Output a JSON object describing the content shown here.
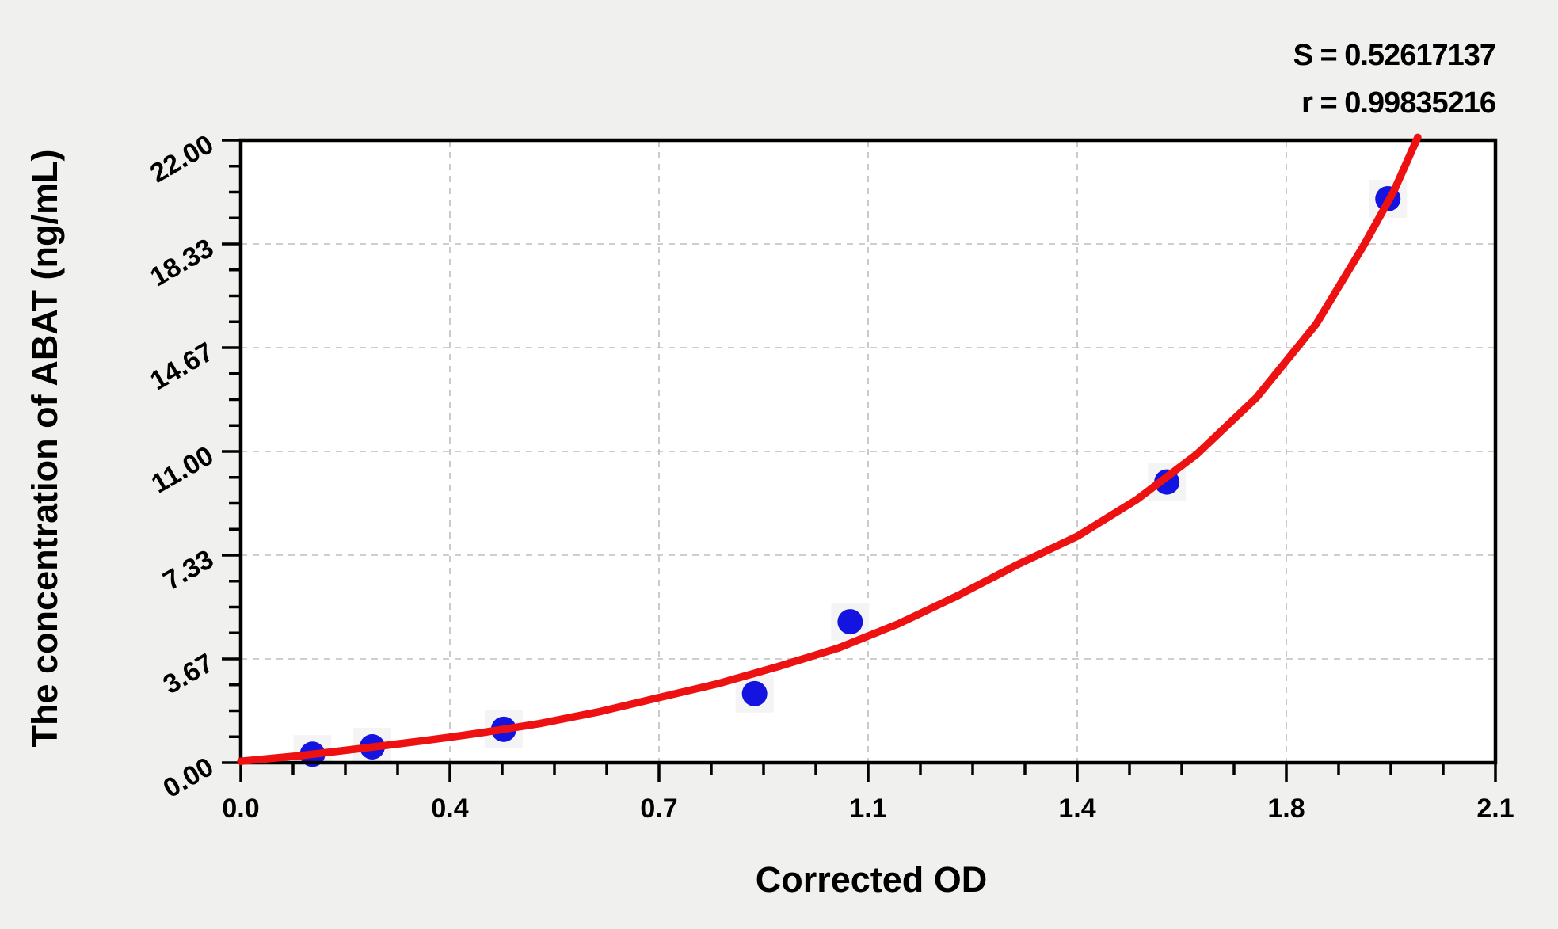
{
  "stats": {
    "s_line": "S = 0.52617137",
    "r_line": "r = 0.99835216"
  },
  "colors": {
    "background": "#f0f0ee",
    "plot_background": "#ffffff",
    "axis": "#000000",
    "grid": "#bdbdbd",
    "curve": "#ee1111",
    "point": "#1414e0",
    "point_halo": "#f4f4f4"
  },
  "chart_data": {
    "type": "scatter",
    "title": "",
    "xlabel": "Corrected OD",
    "ylabel": "The concentration of ABAT (ng/mL)",
    "xlim": [
      0,
      2.1
    ],
    "ylim": [
      0,
      22
    ],
    "grid": {
      "show": true,
      "style": "dashed",
      "at": "major-ticks"
    },
    "legend_position": "none",
    "x_major_ticks": [
      {
        "value": 0.0,
        "label": "0.0"
      },
      {
        "value": 0.35,
        "label": "0.4"
      },
      {
        "value": 0.7,
        "label": "0.7"
      },
      {
        "value": 1.05,
        "label": "1.1"
      },
      {
        "value": 1.4,
        "label": "1.4"
      },
      {
        "value": 1.75,
        "label": "1.8"
      },
      {
        "value": 2.1,
        "label": "2.1"
      }
    ],
    "y_major_ticks": [
      {
        "value": 0,
        "label": "0.00"
      },
      {
        "value": 3.66667,
        "label": "3.67"
      },
      {
        "value": 7.33333,
        "label": "7.33"
      },
      {
        "value": 11,
        "label": "11.00"
      },
      {
        "value": 14.66667,
        "label": "14.67"
      },
      {
        "value": 18.33333,
        "label": "18.33"
      },
      {
        "value": 22,
        "label": "22.00"
      }
    ],
    "minor_ticks_per_interval": 3,
    "fit_stats": {
      "S": 0.52617137,
      "r": 0.99835216
    },
    "series": [
      {
        "name": "standard-points",
        "type": "scatter",
        "points": [
          {
            "x": 0.12,
            "y": 0.3
          },
          {
            "x": 0.22,
            "y": 0.56
          },
          {
            "x": 0.44,
            "y": 1.18
          },
          {
            "x": 0.86,
            "y": 2.44
          },
          {
            "x": 1.02,
            "y": 4.98
          },
          {
            "x": 1.55,
            "y": 9.92
          },
          {
            "x": 1.92,
            "y": 19.93
          }
        ]
      },
      {
        "name": "fitted-curve",
        "type": "line",
        "samples": [
          [
            0.0,
            0.05
          ],
          [
            0.1,
            0.25
          ],
          [
            0.2,
            0.5
          ],
          [
            0.3,
            0.76
          ],
          [
            0.35,
            0.9
          ],
          [
            0.4,
            1.05
          ],
          [
            0.5,
            1.38
          ],
          [
            0.6,
            1.8
          ],
          [
            0.7,
            2.3
          ],
          [
            0.8,
            2.8
          ],
          [
            0.9,
            3.4
          ],
          [
            1.0,
            4.05
          ],
          [
            1.1,
            4.9
          ],
          [
            1.2,
            5.9
          ],
          [
            1.3,
            7.0
          ],
          [
            1.4,
            8.0
          ],
          [
            1.5,
            9.3
          ],
          [
            1.6,
            10.9
          ],
          [
            1.7,
            12.9
          ],
          [
            1.8,
            15.5
          ],
          [
            1.88,
            18.3
          ],
          [
            1.93,
            20.2
          ],
          [
            1.97,
            22.1
          ]
        ]
      }
    ]
  }
}
